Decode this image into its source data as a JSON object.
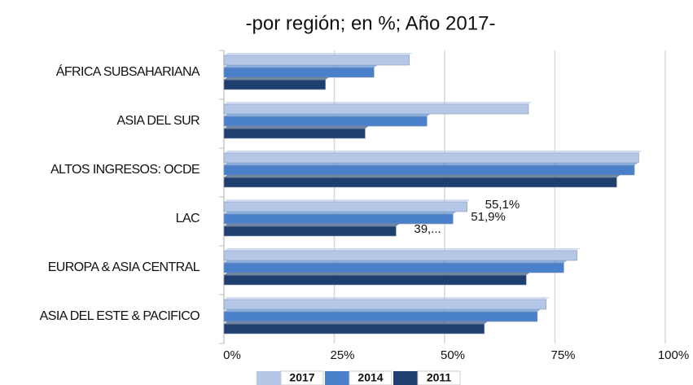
{
  "chart_data": {
    "type": "hbar",
    "title": "-por región; en %; Año 2017-",
    "categories": [
      "ÁFRICA SUBSAHARIANA",
      "ASIA DEL SUR",
      "ALTOS INGRESOS: OCDE",
      "LAC",
      "EUROPA & ASIA CENTRAL",
      "ASIA DEL ESTE & PACIFICO"
    ],
    "series": [
      {
        "name": "2017",
        "color": "#b4c7e7",
        "values": [
          42,
          69,
          94,
          55.1,
          80,
          73
        ],
        "value_labels": [
          null,
          null,
          null,
          "55,1%",
          null,
          null
        ]
      },
      {
        "name": "2014",
        "color": "#4a7fc9",
        "values": [
          34,
          46,
          93,
          51.9,
          77,
          71
        ],
        "value_labels": [
          null,
          null,
          null,
          "51,9%",
          null,
          null
        ]
      },
      {
        "name": "2011",
        "color": "#1f3f6e",
        "values": [
          23,
          32,
          89,
          39,
          68.5,
          59
        ],
        "value_labels": [
          null,
          null,
          null,
          "39,...",
          null,
          null
        ]
      }
    ],
    "xlim": [
      0,
      100
    ],
    "xticks": [
      {
        "value": 0,
        "label": "0%"
      },
      {
        "value": 25,
        "label": "25%"
      },
      {
        "value": 50,
        "label": "50%"
      },
      {
        "value": 75,
        "label": "75%"
      },
      {
        "value": 100,
        "label": "100%"
      }
    ],
    "grid": true,
    "legend": "bottom"
  }
}
